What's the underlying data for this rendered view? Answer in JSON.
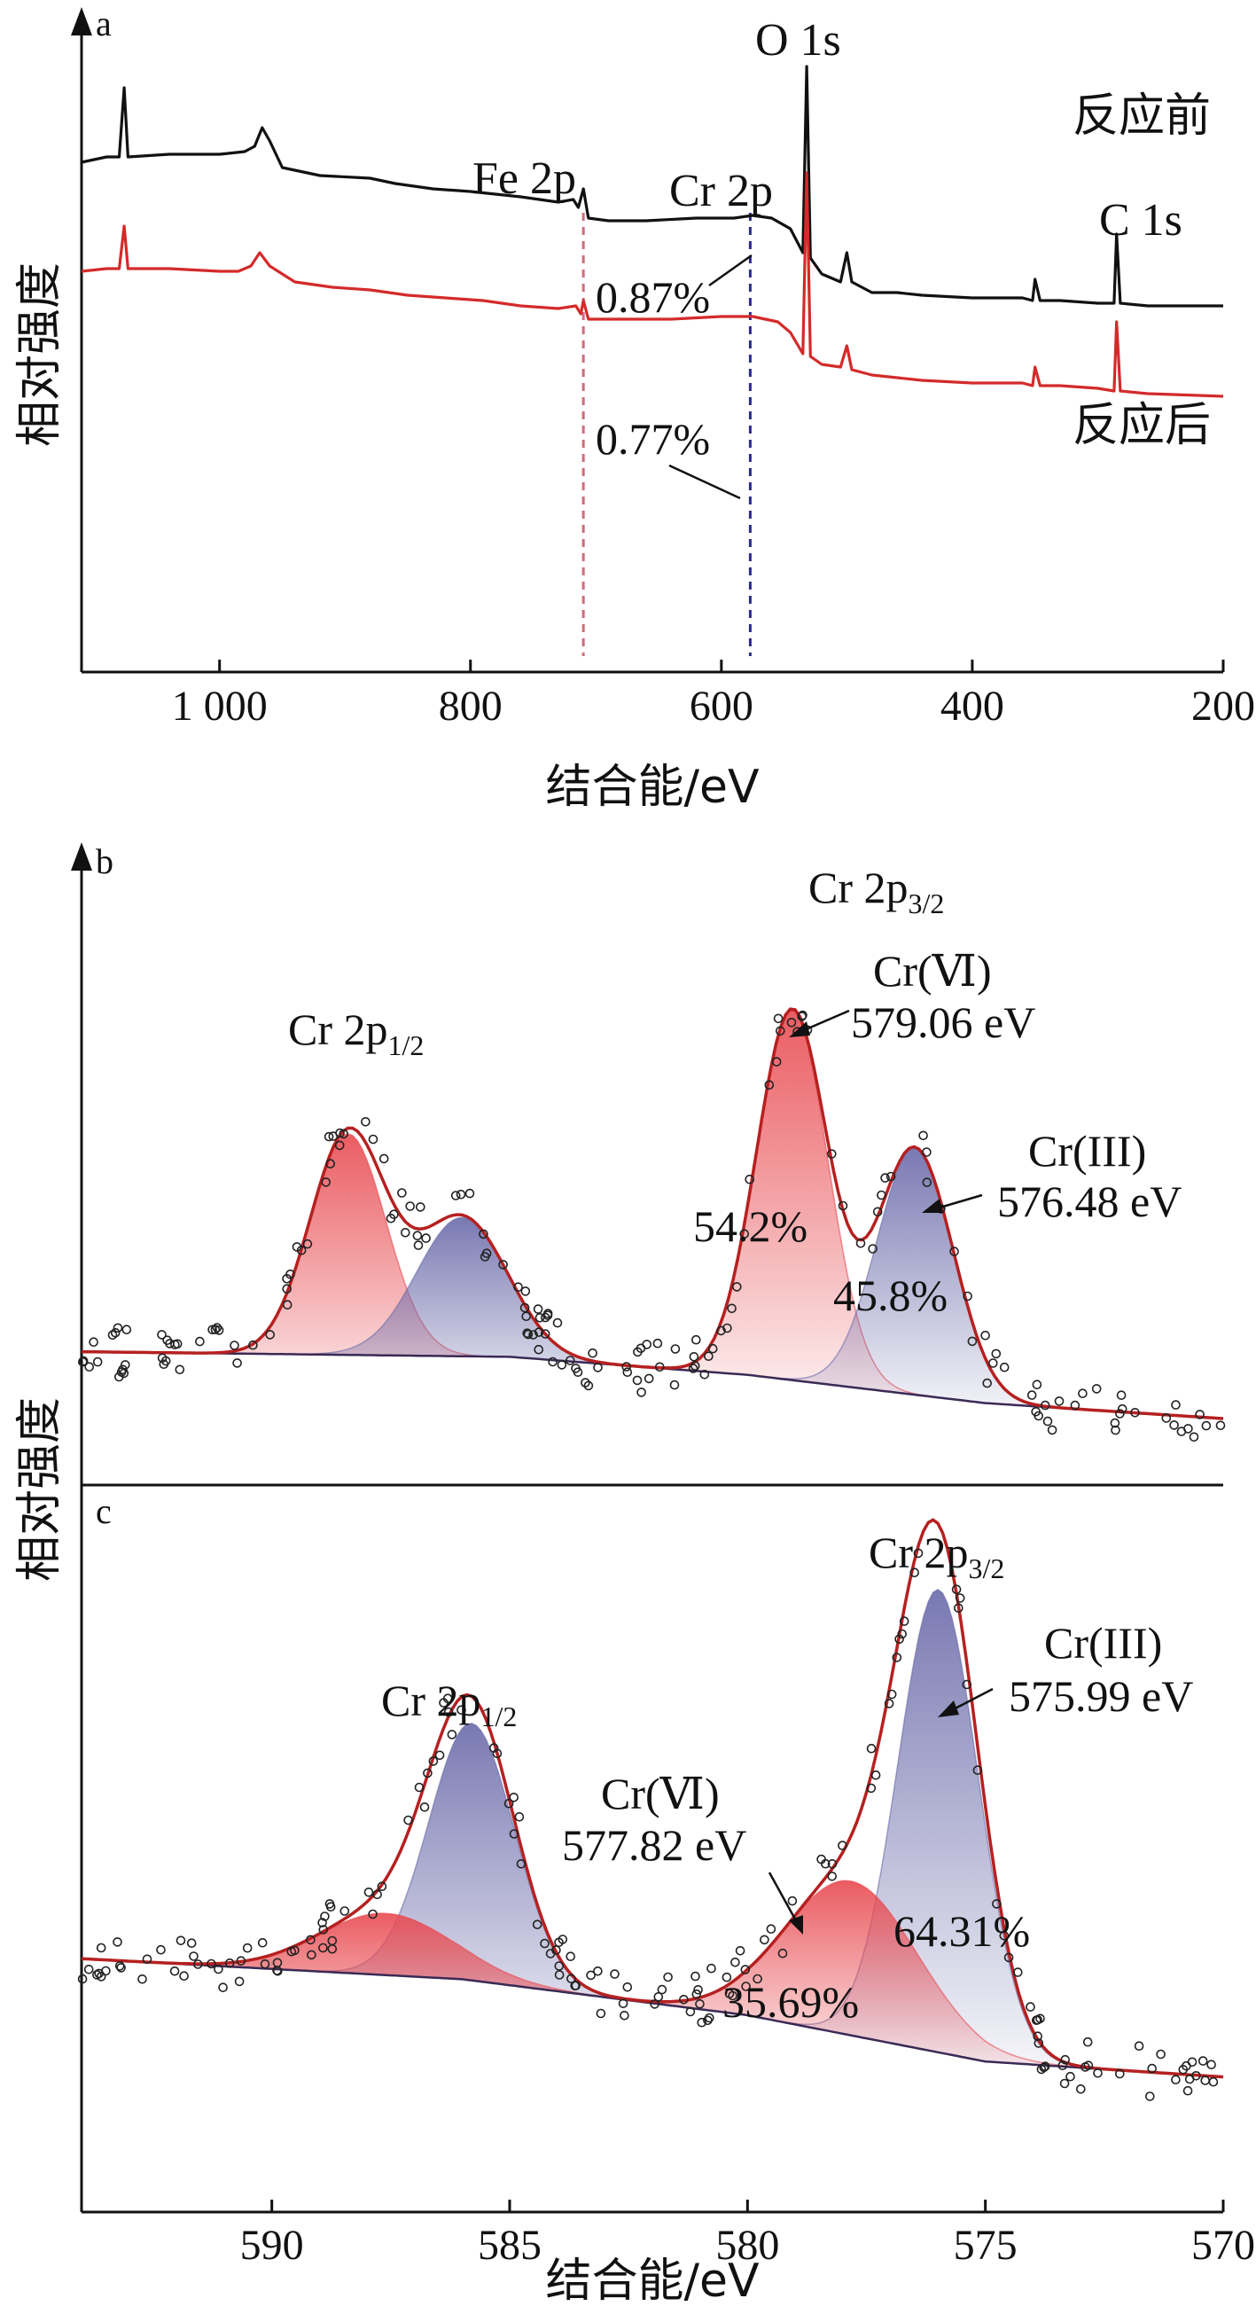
{
  "chart_data": [
    {
      "panel": "a",
      "type": "line",
      "xlabel": "结合能/eV",
      "ylabel": "相对强度",
      "xlim": [
        1110,
        200
      ],
      "x_ticks": [
        1000,
        800,
        600,
        400,
        200
      ],
      "x_tick_labels": [
        "1 000",
        "800",
        "600",
        "400",
        "200"
      ],
      "series": [
        {
          "name": "反应前",
          "color": "#111111",
          "points": [
            [
              1110,
              0.64
            ],
            [
              1090,
              0.66
            ],
            [
              1080,
              0.66
            ],
            [
              1076,
              0.92
            ],
            [
              1073,
              0.66
            ],
            [
              1040,
              0.67
            ],
            [
              1000,
              0.67
            ],
            [
              980,
              0.68
            ],
            [
              972,
              0.7
            ],
            [
              966,
              0.77
            ],
            [
              960,
              0.72
            ],
            [
              950,
              0.62
            ],
            [
              920,
              0.59
            ],
            [
              880,
              0.58
            ],
            [
              860,
              0.56
            ],
            [
              830,
              0.54
            ],
            [
              800,
              0.53
            ],
            [
              760,
              0.51
            ],
            [
              730,
              0.49
            ],
            [
              718,
              0.5
            ],
            [
              714,
              0.47
            ],
            [
              710,
              0.54
            ],
            [
              706,
              0.43
            ],
            [
              690,
              0.42
            ],
            [
              660,
              0.42
            ],
            [
              620,
              0.43
            ],
            [
              590,
              0.43
            ],
            [
              575,
              0.44
            ],
            [
              560,
              0.43
            ],
            [
              545,
              0.39
            ],
            [
              535,
              0.3
            ],
            [
              532,
              1.0
            ],
            [
              529,
              0.28
            ],
            [
              520,
              0.22
            ],
            [
              505,
              0.19
            ],
            [
              500,
              0.3
            ],
            [
              496,
              0.19
            ],
            [
              480,
              0.15
            ],
            [
              460,
              0.15
            ],
            [
              440,
              0.14
            ],
            [
              400,
              0.13
            ],
            [
              360,
              0.13
            ],
            [
              352,
              0.12
            ],
            [
              350,
              0.2
            ],
            [
              346,
              0.12
            ],
            [
              330,
              0.12
            ],
            [
              300,
              0.11
            ],
            [
              287,
              0.11
            ],
            [
              285,
              0.37
            ],
            [
              282,
              0.11
            ],
            [
              260,
              0.1
            ],
            [
              200,
              0.1
            ]
          ]
        },
        {
          "name": "反应后",
          "color": "#d42a2a",
          "points": [
            [
              1110,
              0.23
            ],
            [
              1090,
              0.24
            ],
            [
              1080,
              0.24
            ],
            [
              1076,
              0.4
            ],
            [
              1073,
              0.24
            ],
            [
              1040,
              0.24
            ],
            [
              1000,
              0.23
            ],
            [
              985,
              0.23
            ],
            [
              975,
              0.25
            ],
            [
              968,
              0.3
            ],
            [
              960,
              0.25
            ],
            [
              940,
              0.19
            ],
            [
              910,
              0.17
            ],
            [
              880,
              0.16
            ],
            [
              850,
              0.14
            ],
            [
              820,
              0.13
            ],
            [
              790,
              0.12
            ],
            [
              760,
              0.1
            ],
            [
              730,
              0.09
            ],
            [
              716,
              0.1
            ],
            [
              712,
              0.07
            ],
            [
              710,
              0.12
            ],
            [
              706,
              0.05
            ],
            [
              680,
              0.05
            ],
            [
              640,
              0.05
            ],
            [
              600,
              0.06
            ],
            [
              575,
              0.06
            ],
            [
              555,
              0.04
            ],
            [
              545,
              0.0
            ],
            [
              535,
              -0.08
            ],
            [
              532,
              0.6
            ],
            [
              529,
              -0.09
            ],
            [
              520,
              -0.12
            ],
            [
              505,
              -0.13
            ],
            [
              500,
              -0.05
            ],
            [
              496,
              -0.14
            ],
            [
              480,
              -0.16
            ],
            [
              460,
              -0.17
            ],
            [
              440,
              -0.18
            ],
            [
              400,
              -0.19
            ],
            [
              360,
              -0.19
            ],
            [
              352,
              -0.2
            ],
            [
              350,
              -0.13
            ],
            [
              346,
              -0.2
            ],
            [
              330,
              -0.2
            ],
            [
              300,
              -0.21
            ],
            [
              287,
              -0.22
            ],
            [
              285,
              0.04
            ],
            [
              282,
              -0.22
            ],
            [
              260,
              -0.23
            ],
            [
              200,
              -0.24
            ]
          ]
        }
      ],
      "reference_lines": [
        {
          "x": 710,
          "color": "#d46a7a",
          "style": "dashed"
        },
        {
          "x": 577,
          "color": "#2b2b8a",
          "style": "dashed"
        }
      ],
      "peak_labels": [
        "Fe 2p",
        "Cr 2p",
        "O 1s",
        "C 1s"
      ],
      "sample_labels": [
        "反应前",
        "反应后"
      ],
      "annotations": [
        "0.87%",
        "0.77%"
      ]
    },
    {
      "panel": "b",
      "type": "line",
      "xlim": [
        594,
        570
      ],
      "x_ticks": [
        590,
        585,
        580,
        575,
        570
      ],
      "baseline": [
        [
          594,
          0.13
        ],
        [
          585,
          0.12
        ],
        [
          580,
          0.085
        ],
        [
          575,
          0.03
        ],
        [
          570,
          0.0
        ]
      ],
      "peaks": [
        {
          "name": "Cr(VI) 2p3/2",
          "center": 579.06,
          "height": 0.72,
          "width": 0.75,
          "color": "#e84a50"
        },
        {
          "name": "Cr(III) 2p3/2",
          "center": 576.48,
          "height": 0.48,
          "width": 0.8,
          "color": "#6a6aaa"
        },
        {
          "name": "Cr(VI) 2p1/2",
          "center": 588.4,
          "height": 0.43,
          "width": 0.8,
          "color": "#e84a50"
        },
        {
          "name": "Cr(III) 2p1/2",
          "center": 586.0,
          "height": 0.27,
          "width": 0.95,
          "color": "#6a6aaa"
        }
      ],
      "peak_labels": [
        "Cr 2p",
        "1/2",
        "3/2"
      ],
      "components": [
        {
          "label": "Cr(Ⅵ)",
          "energy": "579.06 eV",
          "percent": "54.2%"
        },
        {
          "label": "Cr(III)",
          "energy": "576.48 eV",
          "percent": "45.8%"
        }
      ]
    },
    {
      "panel": "c",
      "type": "line",
      "xlim": [
        594,
        570
      ],
      "x_ticks": [
        590,
        585,
        580,
        575,
        570
      ],
      "x_tick_labels": [
        "590",
        "585",
        "580",
        "575",
        "570"
      ],
      "xlabel": "结合能/eV",
      "baseline": [
        [
          594,
          0.26
        ],
        [
          586,
          0.22
        ],
        [
          580,
          0.15
        ],
        [
          575,
          0.06
        ],
        [
          570,
          0.03
        ]
      ],
      "peaks": [
        {
          "name": "Cr(III) 2p3/2",
          "center": 575.99,
          "height": 0.9,
          "width": 0.85,
          "color": "#6a6aaa"
        },
        {
          "name": "Cr(VI) 2p3/2",
          "center": 577.82,
          "height": 0.3,
          "width": 1.4,
          "color": "#e84a50"
        },
        {
          "name": "Cr(III) 2p1/2",
          "center": 585.8,
          "height": 0.5,
          "width": 0.9,
          "color": "#6a6aaa"
        },
        {
          "name": "Cr(VI) 2p1/2",
          "center": 587.6,
          "height": 0.12,
          "width": 1.4,
          "color": "#e84a50"
        }
      ],
      "peak_labels": [
        "Cr 2p",
        "1/2",
        "3/2"
      ],
      "components": [
        {
          "label": "Cr(III)",
          "energy": "575.99 eV",
          "percent": "64.31%"
        },
        {
          "label": "Cr(Ⅵ)",
          "energy": "577.82 eV",
          "percent": "35.69%"
        }
      ]
    }
  ],
  "ylabel_bc": "相对强度",
  "panel_letters": {
    "a": "a",
    "b": "b",
    "c": "c"
  }
}
